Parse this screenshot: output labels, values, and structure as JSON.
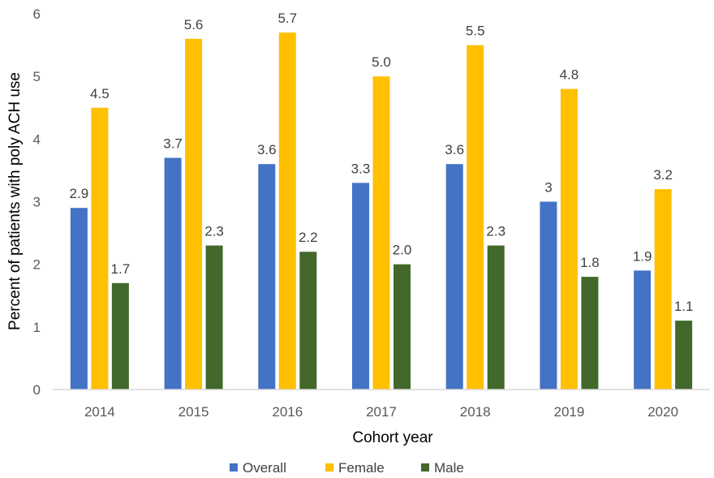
{
  "chart_data": {
    "type": "bar",
    "categories": [
      "2014",
      "2015",
      "2016",
      "2017",
      "2018",
      "2019",
      "2020"
    ],
    "series": [
      {
        "name": "Overall",
        "color": "#4472C4",
        "values": [
          2.9,
          3.7,
          3.6,
          3.3,
          3.6,
          3.0,
          1.9
        ],
        "labels": [
          "2.9",
          "3.7",
          "3.6",
          "3.3",
          "3.6",
          "3",
          "1.9"
        ]
      },
      {
        "name": "Female",
        "color": "#FFC000",
        "values": [
          4.5,
          5.6,
          5.7,
          5.0,
          5.5,
          4.8,
          3.2
        ],
        "labels": [
          "4.5",
          "5.6",
          "5.7",
          "5.0",
          "5.5",
          "4.8",
          "3.2"
        ]
      },
      {
        "name": "Male",
        "color": "#43682B",
        "values": [
          1.7,
          2.3,
          2.2,
          2.0,
          2.3,
          1.8,
          1.1
        ],
        "labels": [
          "1.7",
          "2.3",
          "2.2",
          "2.0",
          "2.3",
          "1.8",
          "1.1"
        ]
      }
    ],
    "xlabel": "Cohort year",
    "ylabel": "Percent of patients with poly ACH use",
    "ylim": [
      0,
      6
    ],
    "yticks": [
      "0",
      "1",
      "2",
      "3",
      "4",
      "5",
      "6"
    ],
    "grid": false,
    "legend_position": "bottom"
  }
}
